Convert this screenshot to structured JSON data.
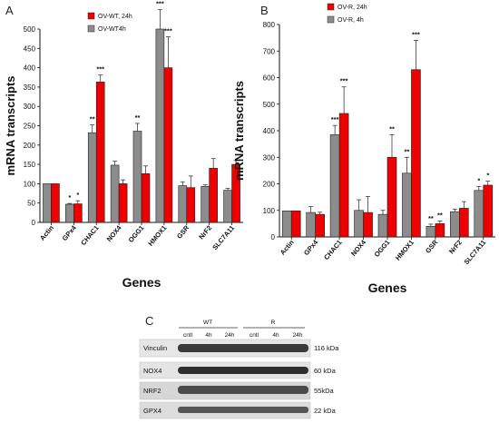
{
  "panel_labels": [
    "A",
    "B",
    "C"
  ],
  "chart_data": [
    {
      "type": "bar",
      "panel": "A",
      "categories": [
        "Actin",
        "GPx4",
        "CHAC1",
        "NOX4",
        "OGG1",
        "HMOX1",
        "GSR",
        "NrF2",
        "SLC7A11"
      ],
      "ylabel": "mRNA transcripts",
      "xlabel": "Genes",
      "ylim": [
        0,
        500
      ],
      "yticks": [
        0,
        50,
        100,
        150,
        200,
        250,
        300,
        350,
        400,
        450,
        500
      ],
      "legend_position": "top-center",
      "series": [
        {
          "name": "OV-WT4h",
          "color": "#8c8c8c",
          "values": [
            100,
            47,
            232,
            148,
            236,
            500,
            95,
            93,
            83
          ],
          "errors": [
            0,
            2,
            20,
            10,
            20,
            50,
            10,
            4,
            5
          ]
        },
        {
          "name": "OV-WT, 24h",
          "color": "#ee0000",
          "values": [
            100,
            48,
            363,
            100,
            126,
            400,
            90,
            140,
            150
          ],
          "errors": [
            0,
            8,
            18,
            10,
            20,
            80,
            30,
            25,
            10
          ]
        }
      ],
      "significance": [
        {
          "category": "GPx4",
          "series": "OV-WT4h",
          "label": "*"
        },
        {
          "category": "GPx4",
          "series": "OV-WT, 24h",
          "label": "*"
        },
        {
          "category": "CHAC1",
          "series": "OV-WT4h",
          "label": "**"
        },
        {
          "category": "CHAC1",
          "series": "OV-WT, 24h",
          "label": "***"
        },
        {
          "category": "OGG1",
          "series": "OV-WT4h",
          "label": "**"
        },
        {
          "category": "HMOX1",
          "series": "OV-WT4h",
          "label": "***"
        },
        {
          "category": "HMOX1",
          "series": "OV-WT, 24h",
          "label": "***"
        }
      ]
    },
    {
      "type": "bar",
      "panel": "B",
      "categories": [
        "Actin",
        "GPx4",
        "CHAC1",
        "NOX4",
        "OGG1",
        "HMOX1",
        "GSR",
        "NrF2",
        "SLC7A11"
      ],
      "ylabel": "mRNA transcripts",
      "xlabel": "Genes",
      "ylim": [
        0,
        800
      ],
      "yticks": [
        0,
        100,
        200,
        300,
        400,
        500,
        600,
        700,
        800
      ],
      "legend_position": "top-center",
      "series": [
        {
          "name": "OV-R, 4h",
          "color": "#8c8c8c",
          "values": [
            98,
            92,
            385,
            100,
            85,
            240,
            40,
            95,
            175
          ],
          "errors": [
            0,
            22,
            35,
            40,
            15,
            60,
            8,
            10,
            15
          ]
        },
        {
          "name": "OV-R, 24h",
          "color": "#ee0000",
          "values": [
            98,
            85,
            465,
            92,
            300,
            630,
            50,
            108,
            195
          ],
          "errors": [
            0,
            8,
            100,
            60,
            85,
            110,
            10,
            25,
            15
          ]
        }
      ],
      "significance": [
        {
          "category": "CHAC1",
          "series": "OV-R, 4h",
          "label": "***"
        },
        {
          "category": "CHAC1",
          "series": "OV-R, 24h",
          "label": "***"
        },
        {
          "category": "OGG1",
          "series": "OV-R, 24h",
          "label": "**"
        },
        {
          "category": "HMOX1",
          "series": "OV-R, 4h",
          "label": "**"
        },
        {
          "category": "HMOX1",
          "series": "OV-R, 24h",
          "label": "***"
        },
        {
          "category": "GSR",
          "series": "OV-R, 4h",
          "label": "**"
        },
        {
          "category": "GSR",
          "series": "OV-R, 24h",
          "label": "**"
        },
        {
          "category": "SLC7A11",
          "series": "OV-R, 4h",
          "label": "*"
        },
        {
          "category": "SLC7A11",
          "series": "OV-R, 24h",
          "label": "*"
        }
      ]
    }
  ],
  "blot": {
    "groups": [
      "WT",
      "R"
    ],
    "lanes": [
      "cntl",
      "4h",
      "24h",
      "cntl",
      "4h",
      "24h"
    ],
    "rows": [
      {
        "protein": "Vinculin",
        "size": "116 kDa"
      },
      {
        "protein": "NOX4",
        "size": "60 kDa"
      },
      {
        "protein": "NRF2",
        "size": "55kDa"
      },
      {
        "protein": "GPX4",
        "size": "22 kDa"
      }
    ]
  }
}
